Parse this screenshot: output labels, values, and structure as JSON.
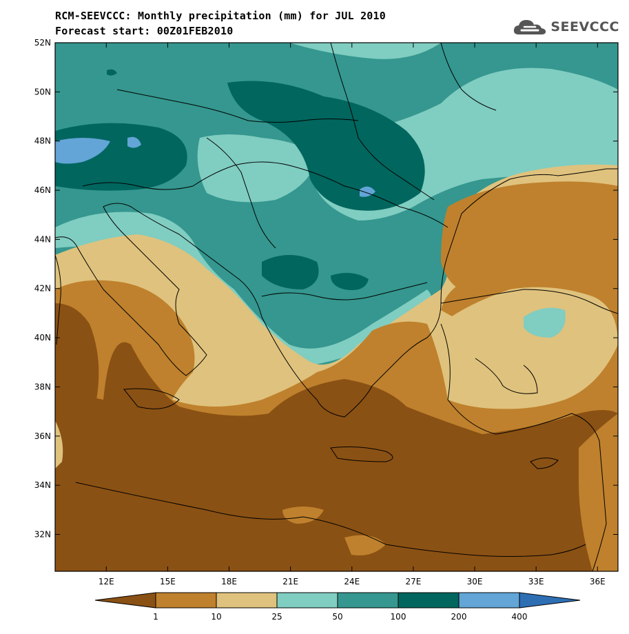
{
  "title": {
    "line1": "RCM-SEEVCCC: Monthly precipitation (mm) for JUL 2010",
    "line2": "Forecast start: 00Z01FEB2010"
  },
  "logo": {
    "text": "SEEVCCC",
    "icon": "cloud-logo-icon"
  },
  "axes": {
    "lat_labels": [
      "52N",
      "50N",
      "48N",
      "46N",
      "44N",
      "42N",
      "40N",
      "38N",
      "36N",
      "34N",
      "32N"
    ],
    "lon_labels": [
      "12E",
      "15E",
      "18E",
      "21E",
      "24E",
      "27E",
      "30E",
      "33E",
      "36E"
    ]
  },
  "map": {
    "lon_range": [
      9.5,
      37
    ],
    "lat_range": [
      30.5,
      52
    ]
  },
  "colorbar": {
    "labels": [
      "1",
      "10",
      "25",
      "50",
      "100",
      "200",
      "400"
    ],
    "colors": [
      "#8a5114",
      "#bf812d",
      "#dfc27d",
      "#80cdc1",
      "#35978f",
      "#01665e",
      "#62a5d6",
      "#2e6fb4"
    ]
  }
}
